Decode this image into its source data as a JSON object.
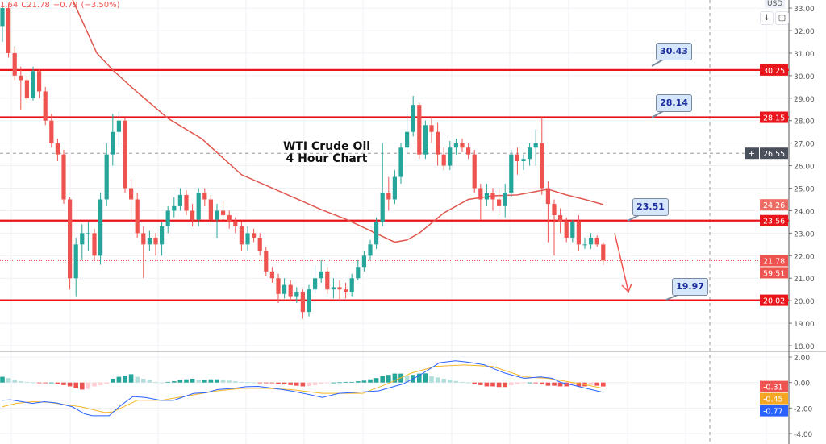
{
  "legend": {
    "open_fragment": "1.64",
    "close": "C21.78",
    "change": "−0.79",
    "change_pct": "(−3.50%)"
  },
  "currency": "USD",
  "toolbar": {
    "scroll_icon": "arrow-down-icon",
    "fullscreen_icon": "fullscreen-icon"
  },
  "title": {
    "line1": "WTI Crude Oil",
    "line2": "4 Hour Chart"
  },
  "colors": {
    "up": "#26a69a",
    "down": "#ef5350",
    "level": "#e8151b",
    "ma": "#e0574f",
    "macd": "#2962ff",
    "signal": "#f5b72a",
    "callout_bg": "#d6e6fb",
    "callout_text": "#1b2d9c"
  },
  "chart_data": [
    {
      "type": "candlestick",
      "price_axis": {
        "min": 17.6,
        "max": 33.4,
        "ticks": [
          "33.00",
          "32.00",
          "31.00",
          "30.00",
          "29.00",
          "28.00",
          "27.00",
          "26.00",
          "25.00",
          "24.00",
          "23.00",
          "22.00",
          "21.00",
          "20.00",
          "19.00",
          "18.00"
        ]
      },
      "grid": true,
      "candles": [
        [
          32.2,
          33.3,
          31.5,
          33.0
        ],
        [
          33.0,
          33.2,
          30.8,
          31.0
        ],
        [
          31.0,
          31.3,
          29.8,
          30.0
        ],
        [
          30.0,
          30.4,
          28.5,
          29.8
        ],
        [
          29.8,
          30.0,
          28.8,
          29.0
        ],
        [
          29.0,
          30.4,
          28.9,
          30.2
        ],
        [
          30.2,
          30.3,
          29.0,
          29.3
        ],
        [
          29.3,
          29.5,
          27.8,
          28.0
        ],
        [
          28.0,
          28.3,
          26.8,
          27.0
        ],
        [
          27.0,
          27.2,
          26.2,
          26.5
        ],
        [
          26.5,
          26.7,
          24.3,
          24.5
        ],
        [
          24.5,
          24.6,
          20.5,
          21.0
        ],
        [
          21.0,
          22.8,
          20.2,
          22.5
        ],
        [
          22.5,
          23.4,
          21.8,
          23.0
        ],
        [
          23.0,
          23.5,
          22.2,
          23.0
        ],
        [
          23.0,
          23.2,
          21.8,
          22.0
        ],
        [
          22.0,
          24.8,
          21.6,
          24.5
        ],
        [
          24.5,
          27.0,
          24.2,
          26.5
        ],
        [
          26.5,
          28.3,
          26.0,
          27.5
        ],
        [
          27.5,
          28.4,
          26.8,
          28.0
        ],
        [
          28.0,
          28.1,
          24.8,
          25.0
        ],
        [
          25.0,
          25.4,
          23.5,
          24.5
        ],
        [
          24.5,
          24.8,
          22.8,
          23.0
        ],
        [
          23.0,
          23.3,
          21.0,
          22.5
        ],
        [
          22.5,
          23.1,
          22.2,
          22.8
        ],
        [
          22.8,
          23.0,
          22.0,
          22.5
        ],
        [
          22.5,
          23.5,
          22.0,
          23.3
        ],
        [
          23.3,
          24.2,
          23.0,
          24.0
        ],
        [
          24.0,
          24.6,
          23.7,
          24.2
        ],
        [
          24.2,
          25.0,
          24.0,
          24.7
        ],
        [
          24.7,
          24.9,
          23.8,
          24.0
        ],
        [
          24.0,
          24.3,
          23.3,
          23.6
        ],
        [
          23.6,
          25.0,
          23.3,
          24.8
        ],
        [
          24.8,
          25.0,
          24.2,
          24.5
        ],
        [
          24.5,
          24.7,
          23.4,
          23.6
        ],
        [
          23.6,
          24.3,
          22.8,
          24.0
        ],
        [
          24.0,
          24.4,
          23.6,
          23.8
        ],
        [
          23.8,
          24.0,
          23.2,
          23.5
        ],
        [
          23.5,
          23.7,
          23.0,
          23.3
        ],
        [
          23.3,
          23.5,
          22.2,
          22.5
        ],
        [
          22.5,
          23.3,
          22.2,
          23.0
        ],
        [
          23.0,
          23.2,
          22.6,
          22.8
        ],
        [
          22.8,
          23.0,
          22.0,
          22.2
        ],
        [
          22.2,
          22.4,
          21.1,
          21.3
        ],
        [
          21.3,
          21.5,
          20.8,
          21.0
        ],
        [
          21.0,
          21.2,
          19.9,
          20.3
        ],
        [
          20.3,
          21.0,
          20.1,
          20.7
        ],
        [
          20.7,
          20.9,
          20.0,
          20.2
        ],
        [
          20.2,
          20.6,
          19.9,
          20.4
        ],
        [
          20.4,
          20.5,
          19.2,
          19.5
        ],
        [
          19.5,
          20.7,
          19.3,
          20.5
        ],
        [
          20.5,
          21.6,
          20.3,
          21.0
        ],
        [
          21.0,
          21.8,
          20.8,
          21.3
        ],
        [
          21.3,
          21.5,
          20.3,
          20.5
        ],
        [
          20.5,
          21.0,
          20.1,
          20.6
        ],
        [
          20.6,
          20.9,
          20.0,
          20.5
        ],
        [
          20.5,
          20.8,
          20.1,
          20.4
        ],
        [
          20.4,
          21.2,
          20.2,
          21.0
        ],
        [
          21.0,
          21.8,
          20.9,
          21.5
        ],
        [
          21.5,
          22.2,
          21.3,
          22.0
        ],
        [
          22.0,
          22.7,
          21.8,
          22.5
        ],
        [
          22.5,
          23.7,
          22.3,
          23.5
        ],
        [
          23.5,
          27.0,
          23.3,
          24.8
        ],
        [
          24.8,
          25.5,
          24.0,
          24.5
        ],
        [
          24.5,
          25.8,
          24.3,
          25.5
        ],
        [
          25.5,
          27.0,
          25.2,
          26.8
        ],
        [
          26.8,
          28.3,
          26.5,
          27.5
        ],
        [
          27.5,
          29.1,
          27.3,
          28.7
        ],
        [
          28.7,
          28.8,
          26.3,
          26.5
        ],
        [
          26.5,
          28.0,
          26.3,
          27.8
        ],
        [
          27.8,
          28.2,
          27.0,
          27.5
        ],
        [
          27.5,
          27.9,
          26.0,
          26.5
        ],
        [
          26.5,
          26.8,
          25.8,
          26.0
        ],
        [
          26.0,
          27.1,
          25.8,
          26.8
        ],
        [
          26.8,
          27.2,
          26.5,
          27.0
        ],
        [
          27.0,
          27.2,
          26.6,
          26.8
        ],
        [
          26.8,
          27.0,
          26.3,
          26.5
        ],
        [
          26.5,
          26.7,
          24.8,
          25.0
        ],
        [
          25.0,
          25.2,
          23.6,
          24.5
        ],
        [
          24.5,
          25.2,
          24.2,
          24.8
        ],
        [
          24.8,
          25.0,
          24.0,
          24.5
        ],
        [
          24.5,
          25.0,
          23.8,
          24.2
        ],
        [
          24.2,
          25.2,
          23.7,
          24.8
        ],
        [
          24.8,
          26.7,
          24.6,
          26.5
        ],
        [
          26.5,
          26.8,
          25.6,
          26.2
        ],
        [
          26.2,
          26.5,
          25.8,
          26.3
        ],
        [
          26.3,
          27.0,
          26.0,
          26.8
        ],
        [
          26.8,
          27.6,
          26.0,
          27.0
        ],
        [
          27.0,
          28.2,
          24.7,
          25.0
        ],
        [
          25.0,
          25.3,
          22.6,
          24.3
        ],
        [
          24.3,
          24.5,
          22.0,
          23.8
        ],
        [
          23.8,
          24.1,
          23.0,
          23.5
        ],
        [
          23.5,
          23.7,
          22.6,
          22.8
        ],
        [
          22.8,
          23.6,
          22.6,
          23.5
        ],
        [
          23.5,
          23.8,
          22.2,
          22.5
        ],
        [
          22.5,
          22.8,
          22.3,
          22.5
        ],
        [
          22.5,
          23.0,
          22.3,
          22.8
        ],
        [
          22.8,
          22.9,
          22.4,
          22.5
        ],
        [
          22.5,
          22.6,
          21.6,
          21.78
        ]
      ],
      "moving_average": [
        [
          11.4,
          33.4
        ],
        [
          15.4,
          31.0
        ],
        [
          18,
          30.25
        ],
        [
          21,
          29.5
        ],
        [
          27,
          28.1
        ],
        [
          32.5,
          27.2
        ],
        [
          39,
          25.6
        ],
        [
          45.7,
          24.8
        ],
        [
          52,
          24.05
        ],
        [
          56.2,
          23.6
        ],
        [
          64,
          22.6
        ],
        [
          66,
          22.7
        ],
        [
          68,
          23.0
        ],
        [
          72,
          23.9
        ],
        [
          76,
          24.5
        ],
        [
          80,
          24.66
        ],
        [
          84,
          24.7
        ],
        [
          89,
          24.95
        ],
        [
          92,
          24.7
        ],
        [
          95,
          24.5
        ],
        [
          98,
          24.27
        ]
      ],
      "levels": [
        {
          "price": 30.25,
          "label": "30.25",
          "callout": "30.43"
        },
        {
          "price": 28.15,
          "label": "28.15",
          "callout": "28.14"
        },
        {
          "price": 23.56,
          "label": "23.56",
          "callout": "23.51"
        },
        {
          "price": 20.02,
          "label": "20.02",
          "callout": "19.97"
        }
      ],
      "axis_badges": {
        "crosshair": "26.55",
        "ma": "24.26",
        "last": "21.78",
        "countdown": "59:51"
      },
      "projection_arrow": {
        "from": 23.0,
        "to": 20.4,
        "direction": "down"
      }
    },
    {
      "type": "macd",
      "axis": {
        "min": -4.5,
        "max": 2.3,
        "ticks": [
          "2.00",
          "0.00",
          "-2.00",
          "-4.00"
        ]
      },
      "histogram": [
        0.45,
        0.35,
        0.2,
        0.1,
        0.05,
        0,
        -0.05,
        -0.05,
        0,
        -0.1,
        -0.2,
        -0.3,
        -0.45,
        -0.55,
        -0.5,
        -0.3,
        -0.2,
        -0.1,
        0.3,
        0.45,
        0.55,
        0.65,
        0.45,
        0.3,
        0.2,
        0.05,
        0,
        0.05,
        0.1,
        0.2,
        0.25,
        0.3,
        0.2,
        0.2,
        0.25,
        0.25,
        0.2,
        0.15,
        0.1,
        0.05,
        0.02,
        0,
        -0.02,
        -0.05,
        -0.05,
        -0.1,
        -0.15,
        -0.2,
        -0.25,
        -0.3,
        -0.28,
        -0.2,
        -0.1,
        -0.05,
        0,
        0.02,
        0.05,
        0.05,
        0.1,
        0.15,
        0.25,
        0.35,
        0.5,
        0.6,
        0.7,
        0.7,
        0.5,
        0.6,
        0.7,
        0.72,
        0.5,
        0.4,
        0.3,
        0.2,
        0.12,
        0.05,
        0,
        -0.1,
        -0.2,
        -0.3,
        -0.3,
        -0.35,
        -0.35,
        -0.2,
        -0.12,
        -0.05,
        0,
        -0.05,
        -0.15,
        -0.25,
        -0.25,
        -0.3,
        -0.3,
        -0.2,
        -0.3,
        -0.3,
        -0.2,
        -0.25,
        -0.31
      ],
      "macd_line": [
        [
          0,
          -1.39
        ],
        [
          1.3,
          -1.35
        ],
        [
          4.9,
          -1.64
        ],
        [
          6.8,
          -1.5
        ],
        [
          8.8,
          -1.6
        ],
        [
          11.4,
          -1.9
        ],
        [
          13.4,
          -2.45
        ],
        [
          14.7,
          -2.6
        ],
        [
          17.4,
          -2.6
        ],
        [
          19.3,
          -1.8
        ],
        [
          21.3,
          -1.1
        ],
        [
          23.3,
          -1.17
        ],
        [
          25.9,
          -1.4
        ],
        [
          27.9,
          -1.4
        ],
        [
          31.2,
          -0.85
        ],
        [
          33.2,
          -0.8
        ],
        [
          35.1,
          -0.55
        ],
        [
          37.8,
          -0.45
        ],
        [
          39.7,
          -0.33
        ],
        [
          41.7,
          -0.3
        ],
        [
          44.3,
          -0.45
        ],
        [
          47,
          -0.65
        ],
        [
          49.6,
          -0.9
        ],
        [
          52.2,
          -1.17
        ],
        [
          54.9,
          -0.85
        ],
        [
          58.8,
          -0.74
        ],
        [
          61.4,
          -0.65
        ],
        [
          65.4,
          -0.1
        ],
        [
          68,
          0.55
        ],
        [
          71.3,
          1.55
        ],
        [
          73.9,
          1.7
        ],
        [
          75.9,
          1.6
        ],
        [
          78.6,
          1.39
        ],
        [
          81.8,
          0.76
        ],
        [
          85.1,
          0.33
        ],
        [
          87.8,
          0.44
        ],
        [
          89.7,
          0.33
        ],
        [
          91,
          0.02
        ],
        [
          93,
          -0.19
        ],
        [
          95.6,
          -0.5
        ],
        [
          98,
          -0.77
        ]
      ],
      "signal_line": [
        [
          0,
          -1.9
        ],
        [
          2.2,
          -1.64
        ],
        [
          4.9,
          -1.5
        ],
        [
          7.5,
          -1.55
        ],
        [
          12.8,
          -1.9
        ],
        [
          16.7,
          -2.35
        ],
        [
          18,
          -2.3
        ],
        [
          22,
          -1.39
        ],
        [
          25.9,
          -1.4
        ],
        [
          31.2,
          -0.96
        ],
        [
          35.1,
          -0.65
        ],
        [
          39.1,
          -0.45
        ],
        [
          43,
          -0.45
        ],
        [
          47,
          -0.55
        ],
        [
          52.2,
          -0.85
        ],
        [
          58.8,
          -0.85
        ],
        [
          62.8,
          -0.1
        ],
        [
          66.7,
          0.74
        ],
        [
          70.7,
          1.27
        ],
        [
          75.3,
          1.38
        ],
        [
          79.9,
          1.27
        ],
        [
          85.1,
          0.44
        ],
        [
          89,
          0.33
        ],
        [
          94.3,
          -0.1
        ],
        [
          98,
          -0.45
        ]
      ],
      "badges": {
        "histogram": "-0.31",
        "signal": "-0.45",
        "macd": "-0.77"
      }
    }
  ]
}
